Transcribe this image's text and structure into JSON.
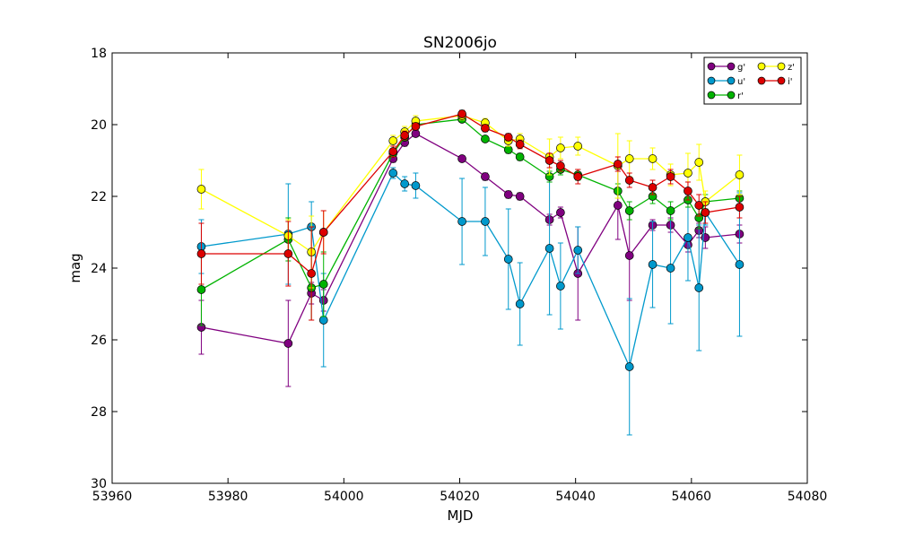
{
  "chart_data": {
    "type": "line",
    "title": "SN2006jo",
    "xlabel": "MJD",
    "ylabel": "mag",
    "xlim": [
      53960,
      54080
    ],
    "ylim": [
      18,
      30
    ],
    "y_inverted": true,
    "xticks": [
      "53960",
      "53980",
      "54000",
      "54020",
      "54040",
      "54060",
      "54080"
    ],
    "yticks": [
      "18",
      "20",
      "22",
      "24",
      "26",
      "28",
      "30"
    ],
    "legend_position": "top-right",
    "grid": false,
    "series": [
      {
        "name": "g'",
        "color": "#800080",
        "points": [
          {
            "x": 53975.4,
            "y": 25.65,
            "err": 0.75
          },
          {
            "x": 53990.4,
            "y": 26.1,
            "err": 1.2
          },
          {
            "x": 53994.4,
            "y": 24.7,
            "err": 0.3
          },
          {
            "x": 53996.5,
            "y": 24.9,
            "err": 0.3
          },
          {
            "x": 54008.5,
            "y": 20.95,
            "err": 0.1
          },
          {
            "x": 54010.5,
            "y": 20.5,
            "err": 0.1
          },
          {
            "x": 54012.4,
            "y": 20.25,
            "err": 0.08
          },
          {
            "x": 54020.4,
            "y": 20.95,
            "err": 0.08
          },
          {
            "x": 54024.4,
            "y": 21.45,
            "err": 0.1
          },
          {
            "x": 54028.4,
            "y": 21.95,
            "err": 0.1
          },
          {
            "x": 54030.4,
            "y": 22.0,
            "err": 0.1
          },
          {
            "x": 54035.5,
            "y": 22.65,
            "err": 0.15
          },
          {
            "x": 54037.4,
            "y": 22.45,
            "err": 0.15
          },
          {
            "x": 54040.4,
            "y": 24.15,
            "err": 1.3
          },
          {
            "x": 54047.3,
            "y": 22.25,
            "err": 0.95
          },
          {
            "x": 54049.3,
            "y": 23.65,
            "err": 1.25
          },
          {
            "x": 54053.3,
            "y": 22.8,
            "err": 0.15
          },
          {
            "x": 54056.4,
            "y": 22.8,
            "err": 0.2
          },
          {
            "x": 54059.4,
            "y": 23.35,
            "err": 0.2
          },
          {
            "x": 54061.3,
            "y": 22.95,
            "err": 0.2
          },
          {
            "x": 54062.4,
            "y": 23.15,
            "err": 0.3
          },
          {
            "x": 54068.3,
            "y": 23.05,
            "err": 0.25
          }
        ]
      },
      {
        "name": "u'",
        "color": "#0099cc",
        "points": [
          {
            "x": 53975.4,
            "y": 23.4,
            "err": 0.75
          },
          {
            "x": 53990.4,
            "y": 23.05,
            "err": 1.4
          },
          {
            "x": 53994.4,
            "y": 22.85,
            "err": 0.7
          },
          {
            "x": 53996.5,
            "y": 25.45,
            "err": 1.3
          },
          {
            "x": 54008.5,
            "y": 21.35,
            "err": 0.15
          },
          {
            "x": 54010.5,
            "y": 21.65,
            "err": 0.2
          },
          {
            "x": 54012.4,
            "y": 21.7,
            "err": 0.35
          },
          {
            "x": 54020.4,
            "y": 22.7,
            "err": 1.2
          },
          {
            "x": 54024.4,
            "y": 22.7,
            "err": 0.95
          },
          {
            "x": 54028.4,
            "y": 23.75,
            "err": 1.4
          },
          {
            "x": 54030.4,
            "y": 25.0,
            "err": 1.15
          },
          {
            "x": 54035.5,
            "y": 23.45,
            "err": 1.85
          },
          {
            "x": 54037.4,
            "y": 24.5,
            "err": 1.2
          },
          {
            "x": 54040.4,
            "y": 23.5,
            "err": 0.65
          },
          {
            "x": 54049.3,
            "y": 26.75,
            "err": 1.9
          },
          {
            "x": 54053.3,
            "y": 23.9,
            "err": 1.2
          },
          {
            "x": 54056.4,
            "y": 24.0,
            "err": 1.55
          },
          {
            "x": 54059.4,
            "y": 23.15,
            "err": 1.2
          },
          {
            "x": 54061.3,
            "y": 24.55,
            "err": 1.75
          },
          {
            "x": 54062.4,
            "y": 22.45,
            "err": 0.35
          },
          {
            "x": 54068.3,
            "y": 23.9,
            "err": 2.0
          }
        ]
      },
      {
        "name": "r'",
        "color": "#00b300",
        "points": [
          {
            "x": 53975.4,
            "y": 24.6,
            "err": 1.0
          },
          {
            "x": 53990.4,
            "y": 23.2,
            "err": 0.6
          },
          {
            "x": 53994.4,
            "y": 24.55,
            "err": 0.9
          },
          {
            "x": 53996.5,
            "y": 24.45,
            "err": 0.9
          },
          {
            "x": 54008.5,
            "y": 20.8,
            "err": 0.1
          },
          {
            "x": 54010.5,
            "y": 20.35,
            "err": 0.1
          },
          {
            "x": 54012.4,
            "y": 20.0,
            "err": 0.08
          },
          {
            "x": 54020.4,
            "y": 19.85,
            "err": 0.08
          },
          {
            "x": 54024.4,
            "y": 20.4,
            "err": 0.08
          },
          {
            "x": 54028.4,
            "y": 20.7,
            "err": 0.1
          },
          {
            "x": 54030.4,
            "y": 20.9,
            "err": 0.1
          },
          {
            "x": 54035.5,
            "y": 21.45,
            "err": 0.15
          },
          {
            "x": 54037.4,
            "y": 21.25,
            "err": 0.15
          },
          {
            "x": 54040.4,
            "y": 21.4,
            "err": 0.15
          },
          {
            "x": 54047.3,
            "y": 21.85,
            "err": 0.2
          },
          {
            "x": 54049.3,
            "y": 22.4,
            "err": 0.25
          },
          {
            "x": 54053.3,
            "y": 22.0,
            "err": 0.2
          },
          {
            "x": 54056.4,
            "y": 22.4,
            "err": 0.25
          },
          {
            "x": 54059.4,
            "y": 22.1,
            "err": 0.2
          },
          {
            "x": 54061.3,
            "y": 22.6,
            "err": 0.3
          },
          {
            "x": 54062.4,
            "y": 22.15,
            "err": 0.2
          },
          {
            "x": 54068.3,
            "y": 22.05,
            "err": 0.2
          }
        ]
      },
      {
        "name": "z'",
        "color": "#ffff00",
        "points": [
          {
            "x": 53975.4,
            "y": 21.8,
            "err": 0.55
          },
          {
            "x": 53990.4,
            "y": 23.1,
            "err": 0.45
          },
          {
            "x": 53994.4,
            "y": 23.55,
            "err": 1.0
          },
          {
            "x": 53996.5,
            "y": 23.0,
            "err": 0.6
          },
          {
            "x": 54008.5,
            "y": 20.45,
            "err": 0.15
          },
          {
            "x": 54010.5,
            "y": 20.2,
            "err": 0.15
          },
          {
            "x": 54012.4,
            "y": 19.9,
            "err": 0.15
          },
          {
            "x": 54020.4,
            "y": 19.75,
            "err": 0.12
          },
          {
            "x": 54024.4,
            "y": 19.95,
            "err": 0.12
          },
          {
            "x": 54028.4,
            "y": 20.45,
            "err": 0.15
          },
          {
            "x": 54030.4,
            "y": 20.4,
            "err": 0.15
          },
          {
            "x": 54035.5,
            "y": 20.9,
            "err": 0.5
          },
          {
            "x": 54037.4,
            "y": 20.65,
            "err": 0.3
          },
          {
            "x": 54040.4,
            "y": 20.6,
            "err": 0.25
          },
          {
            "x": 54047.3,
            "y": 21.15,
            "err": 0.9
          },
          {
            "x": 54049.3,
            "y": 20.95,
            "err": 0.5
          },
          {
            "x": 54053.3,
            "y": 20.95,
            "err": 0.3
          },
          {
            "x": 54056.4,
            "y": 21.4,
            "err": 0.3
          },
          {
            "x": 54059.4,
            "y": 21.35,
            "err": 0.55
          },
          {
            "x": 54061.3,
            "y": 21.05,
            "err": 0.5
          },
          {
            "x": 54062.4,
            "y": 22.15,
            "err": 0.3
          },
          {
            "x": 54068.3,
            "y": 21.4,
            "err": 0.55
          }
        ]
      },
      {
        "name": "i'",
        "color": "#dd0000",
        "points": [
          {
            "x": 53975.4,
            "y": 23.6,
            "err": 0.85
          },
          {
            "x": 53990.4,
            "y": 23.6,
            "err": 0.9
          },
          {
            "x": 53994.4,
            "y": 24.15,
            "err": 1.3
          },
          {
            "x": 53996.5,
            "y": 23.0,
            "err": 0.6
          },
          {
            "x": 54008.5,
            "y": 20.75,
            "err": 0.15
          },
          {
            "x": 54010.5,
            "y": 20.3,
            "err": 0.12
          },
          {
            "x": 54012.4,
            "y": 20.05,
            "err": 0.1
          },
          {
            "x": 54020.4,
            "y": 19.7,
            "err": 0.1
          },
          {
            "x": 54024.4,
            "y": 20.1,
            "err": 0.1
          },
          {
            "x": 54028.4,
            "y": 20.35,
            "err": 0.1
          },
          {
            "x": 54030.4,
            "y": 20.55,
            "err": 0.12
          },
          {
            "x": 54035.5,
            "y": 21.0,
            "err": 0.2
          },
          {
            "x": 54037.4,
            "y": 21.15,
            "err": 0.15
          },
          {
            "x": 54040.4,
            "y": 21.45,
            "err": 0.2
          },
          {
            "x": 54047.3,
            "y": 21.1,
            "err": 0.2
          },
          {
            "x": 54049.3,
            "y": 21.55,
            "err": 0.2
          },
          {
            "x": 54053.3,
            "y": 21.75,
            "err": 0.2
          },
          {
            "x": 54056.4,
            "y": 21.45,
            "err": 0.2
          },
          {
            "x": 54059.4,
            "y": 21.85,
            "err": 0.25
          },
          {
            "x": 54061.3,
            "y": 22.25,
            "err": 0.3
          },
          {
            "x": 54062.4,
            "y": 22.45,
            "err": 0.3
          },
          {
            "x": 54068.3,
            "y": 22.3,
            "err": 0.3
          }
        ]
      }
    ]
  }
}
